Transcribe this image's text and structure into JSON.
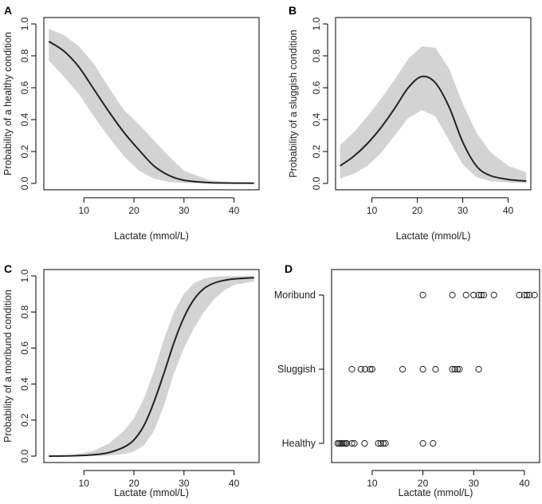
{
  "chart_data": [
    {
      "panel": "A",
      "type": "line",
      "xlabel": "Lactate (mmol/L)",
      "ylabel": "Probability of a healthy condition",
      "xlim": [
        2,
        45
      ],
      "ylim": [
        0,
        1
      ],
      "xticks": [
        "10",
        "20",
        "30",
        "40"
      ],
      "yticks": [
        "0.0",
        "0.2",
        "0.4",
        "0.6",
        "0.8",
        "1.0"
      ],
      "series": [
        {
          "name": "fit",
          "x": [
            3,
            6,
            9,
            12,
            15,
            18,
            21,
            24,
            27,
            30,
            35,
            40,
            44
          ],
          "y": [
            0.89,
            0.83,
            0.73,
            0.59,
            0.45,
            0.32,
            0.21,
            0.11,
            0.05,
            0.02,
            0.005,
            0.002,
            0.001
          ]
        },
        {
          "name": "lower",
          "x": [
            3,
            6,
            9,
            12,
            15,
            18,
            21,
            24,
            27,
            30,
            35,
            40,
            44
          ],
          "y": [
            0.77,
            0.67,
            0.56,
            0.42,
            0.29,
            0.17,
            0.08,
            0.03,
            0.01,
            0.003,
            0.0,
            0.0,
            0.0
          ]
        },
        {
          "name": "upper",
          "x": [
            3,
            6,
            9,
            12,
            15,
            18,
            21,
            24,
            27,
            30,
            35,
            40,
            44
          ],
          "y": [
            0.97,
            0.93,
            0.86,
            0.75,
            0.6,
            0.46,
            0.37,
            0.27,
            0.17,
            0.08,
            0.02,
            0.005,
            0.002
          ]
        }
      ]
    },
    {
      "panel": "B",
      "type": "line",
      "xlabel": "Lactate (mmol/L)",
      "ylabel": "Probability of a sluggish condition",
      "xlim": [
        2,
        45
      ],
      "ylim": [
        0,
        1
      ],
      "xticks": [
        "10",
        "20",
        "30",
        "40"
      ],
      "yticks": [
        "0.0",
        "0.2",
        "0.4",
        "0.6",
        "0.8",
        "1.0"
      ],
      "series": [
        {
          "name": "fit",
          "x": [
            3,
            6,
            9,
            12,
            15,
            18,
            21,
            24,
            27,
            30,
            33,
            36,
            40,
            44
          ],
          "y": [
            0.11,
            0.17,
            0.25,
            0.35,
            0.47,
            0.6,
            0.67,
            0.63,
            0.48,
            0.26,
            0.11,
            0.05,
            0.025,
            0.015
          ]
        },
        {
          "name": "lower",
          "x": [
            3,
            6,
            9,
            12,
            15,
            18,
            21,
            24,
            27,
            30,
            33,
            36,
            40,
            44
          ],
          "y": [
            0.03,
            0.06,
            0.11,
            0.19,
            0.3,
            0.41,
            0.46,
            0.42,
            0.27,
            0.12,
            0.04,
            0.015,
            0.005,
            0.002
          ]
        },
        {
          "name": "upper",
          "x": [
            3,
            6,
            9,
            12,
            15,
            18,
            21,
            24,
            27,
            30,
            33,
            36,
            40,
            44
          ],
          "y": [
            0.24,
            0.32,
            0.42,
            0.53,
            0.65,
            0.78,
            0.86,
            0.85,
            0.72,
            0.5,
            0.32,
            0.2,
            0.11,
            0.07
          ]
        }
      ]
    },
    {
      "panel": "C",
      "type": "line",
      "xlabel": "Lactate (mmol/L)",
      "ylabel": "Probability of a moribund condition",
      "xlim": [
        2,
        45
      ],
      "ylim": [
        0,
        1
      ],
      "xticks": [
        "10",
        "20",
        "30",
        "40"
      ],
      "yticks": [
        "0.0",
        "0.2",
        "0.4",
        "0.6",
        "0.8",
        "1.0"
      ],
      "series": [
        {
          "name": "fit",
          "x": [
            3,
            8,
            12,
            15,
            18,
            20,
            22,
            24,
            26,
            28,
            30,
            32,
            34,
            36,
            38,
            40,
            44
          ],
          "y": [
            0.0,
            0.002,
            0.008,
            0.02,
            0.05,
            0.09,
            0.17,
            0.3,
            0.46,
            0.63,
            0.77,
            0.87,
            0.93,
            0.96,
            0.975,
            0.983,
            0.99
          ]
        },
        {
          "name": "lower",
          "x": [
            3,
            8,
            12,
            15,
            18,
            20,
            22,
            24,
            26,
            28,
            30,
            32,
            34,
            36,
            38,
            40,
            44
          ],
          "y": [
            0.0,
            0.0,
            0.001,
            0.003,
            0.012,
            0.025,
            0.06,
            0.14,
            0.28,
            0.46,
            0.6,
            0.71,
            0.8,
            0.87,
            0.92,
            0.95,
            0.97
          ]
        },
        {
          "name": "upper",
          "x": [
            3,
            8,
            12,
            15,
            18,
            20,
            22,
            24,
            26,
            28,
            30,
            32,
            34,
            36,
            38,
            40,
            44
          ],
          "y": [
            0.001,
            0.008,
            0.03,
            0.07,
            0.14,
            0.21,
            0.32,
            0.47,
            0.65,
            0.8,
            0.9,
            0.96,
            0.985,
            0.995,
            0.998,
            0.999,
            1.0
          ]
        }
      ]
    },
    {
      "panel": "D",
      "type": "scatter",
      "xlabel": "Lactate (mmol/L)",
      "ylabel": "",
      "xlim": [
        2,
        43
      ],
      "xticks": [
        "10",
        "20",
        "30",
        "40"
      ],
      "categories": [
        "Healthy",
        "Sluggish",
        "Moribund"
      ],
      "points": {
        "Healthy": [
          3.2,
          3.5,
          3.8,
          4.1,
          4.4,
          4.7,
          5.0,
          6.0,
          6.5,
          8.5,
          11.2,
          11.7,
          12.2,
          12.6,
          20.0,
          22.0
        ],
        "Sluggish": [
          6.0,
          7.8,
          8.6,
          9.6,
          10.0,
          16.0,
          20.0,
          22.5,
          25.8,
          26.3,
          26.8,
          27.2,
          31.0
        ],
        "Moribund": [
          20.0,
          25.8,
          28.5,
          30.0,
          31.0,
          31.5,
          32.0,
          34.0,
          39.0,
          40.0,
          40.5,
          41.0,
          42.0
        ]
      }
    }
  ]
}
